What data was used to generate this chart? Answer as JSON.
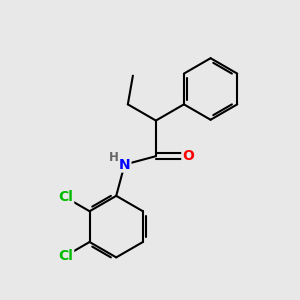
{
  "background_color": "#e8e8e8",
  "bond_color": "#000000",
  "bond_width": 1.5,
  "atom_colors": {
    "O": "#ff0000",
    "N": "#0000ff",
    "Cl": "#00bb00",
    "H": "#666666"
  },
  "font_size_atoms": 10,
  "font_size_H": 8.5,
  "figsize": [
    3.0,
    3.0
  ],
  "dpi": 100
}
